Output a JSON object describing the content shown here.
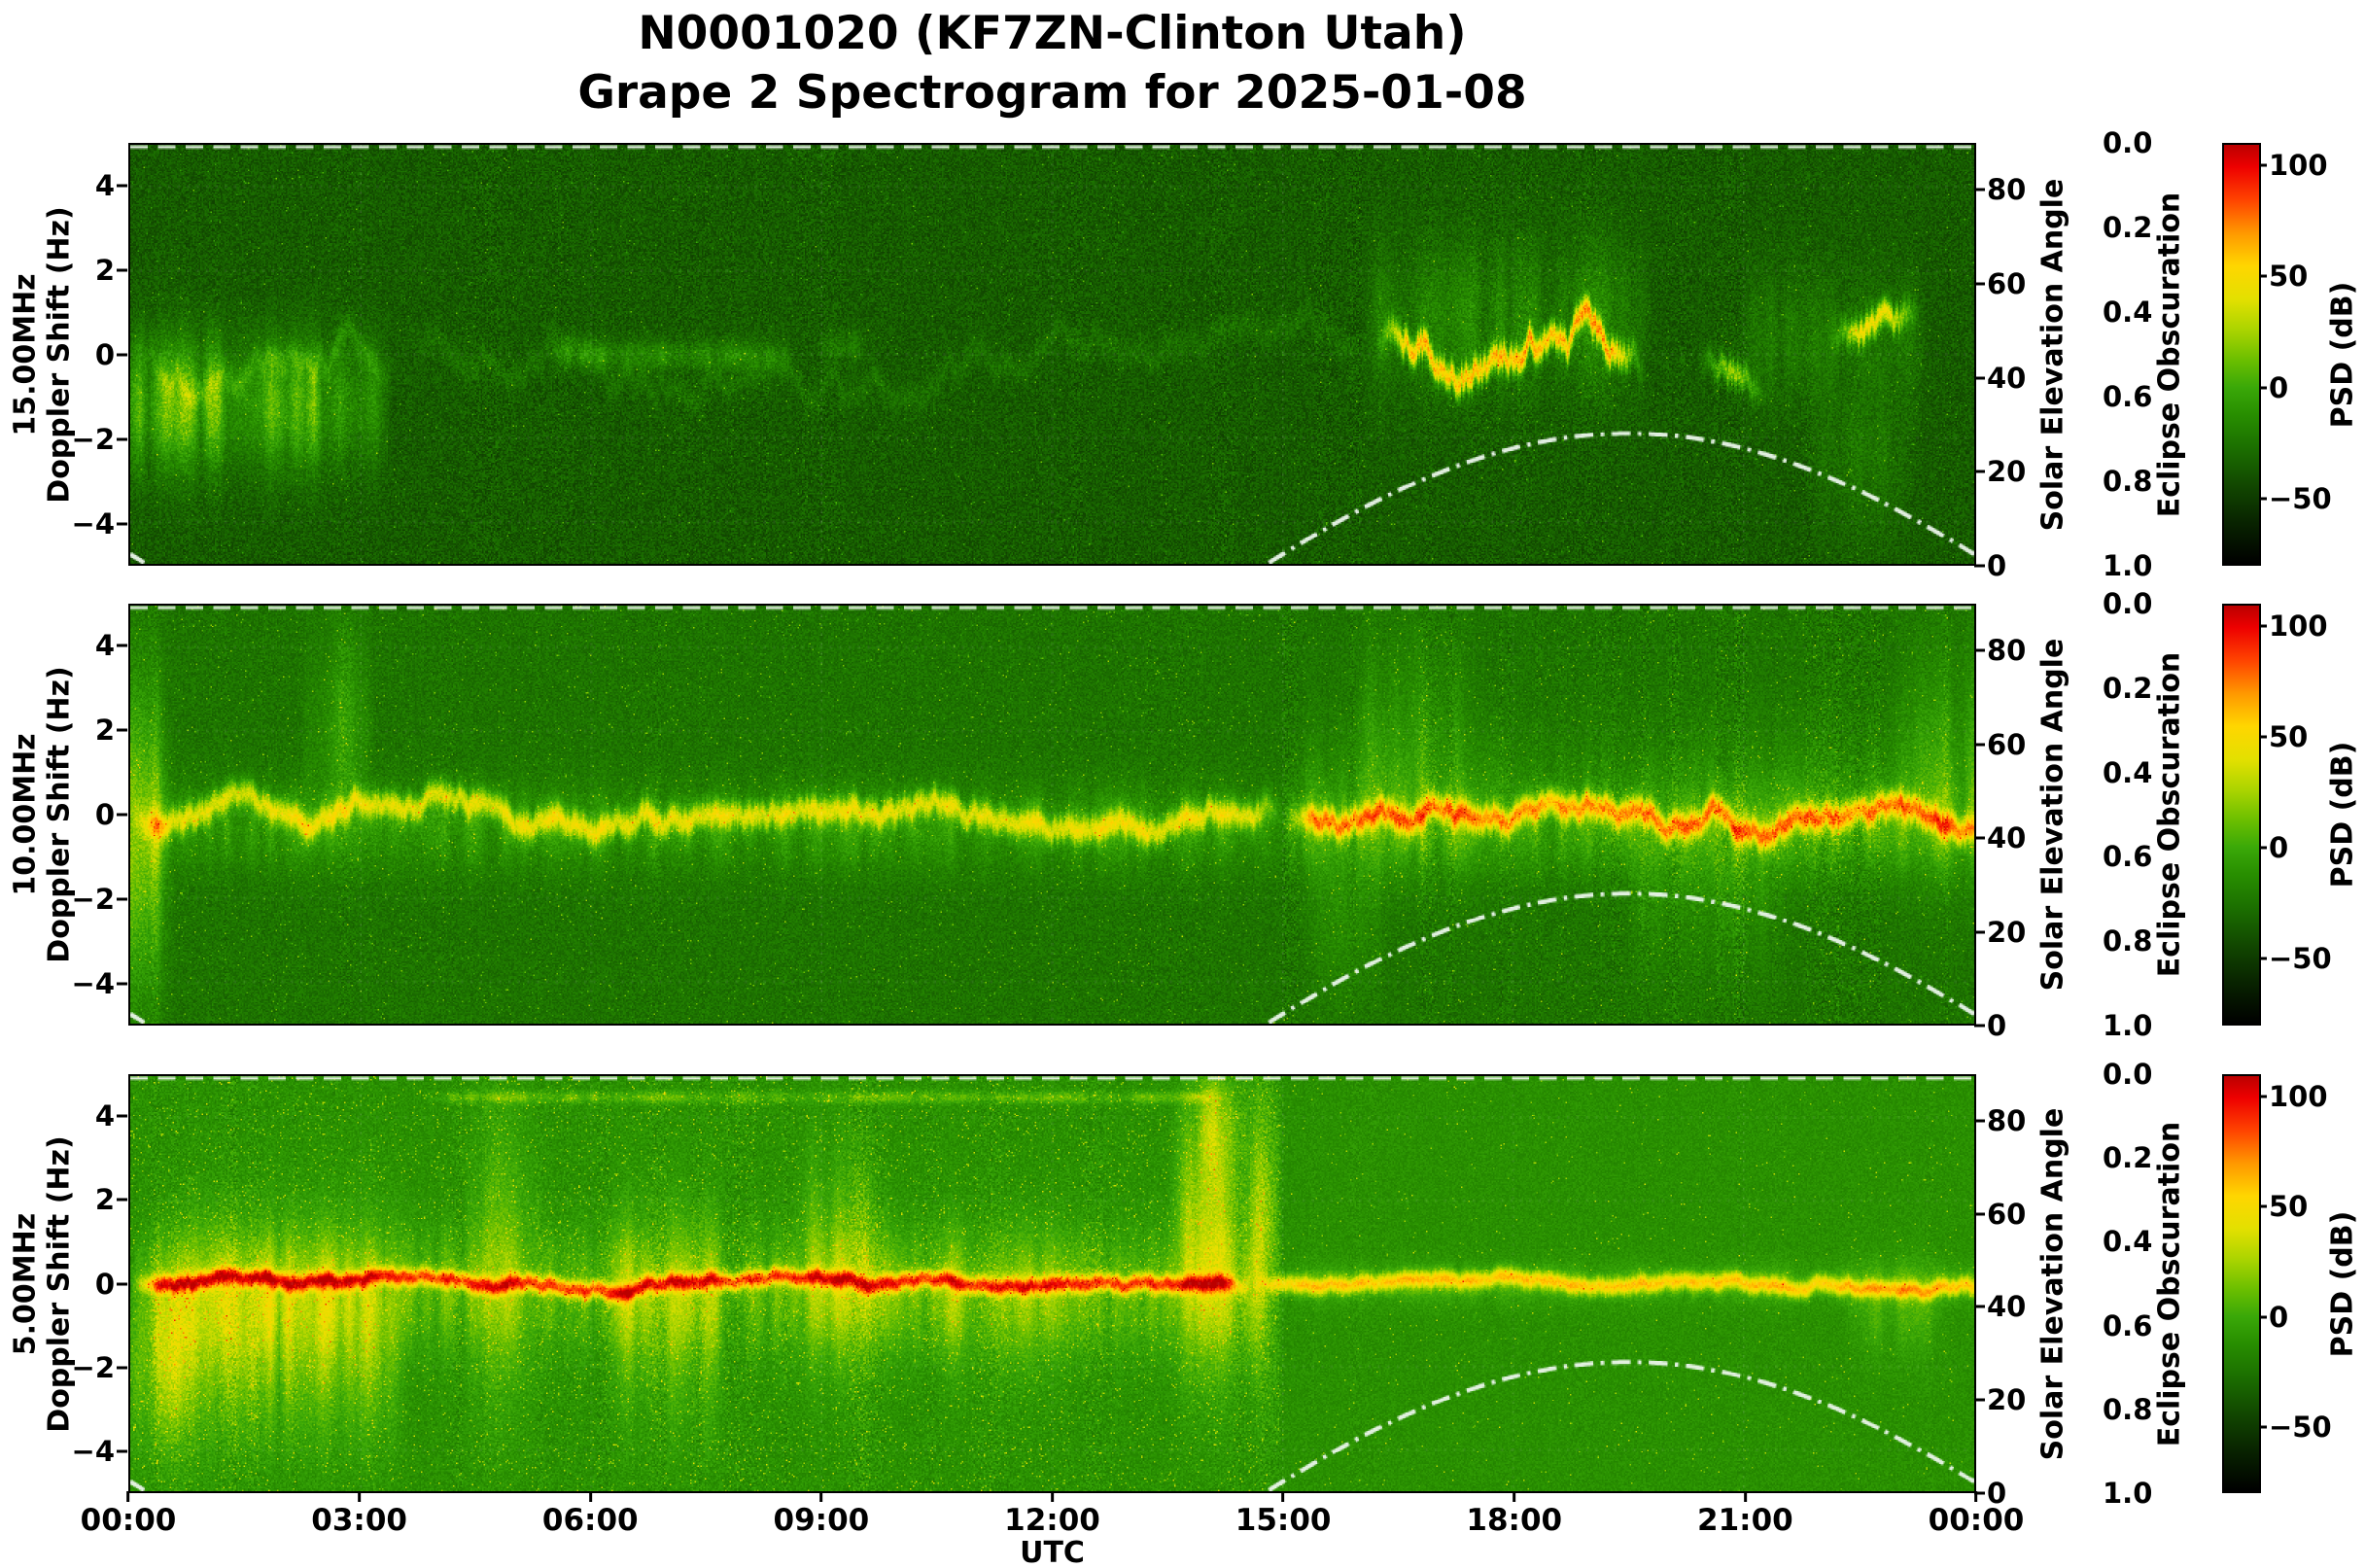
{
  "title": {
    "line1": "N0001020 (KF7ZN-Clinton Utah)",
    "line2": "Grape 2 Spectrogram for 2025-01-08"
  },
  "axes": {
    "x": {
      "label": "UTC",
      "ticks": [
        "00:00",
        "03:00",
        "06:00",
        "09:00",
        "12:00",
        "15:00",
        "18:00",
        "21:00",
        "00:00"
      ]
    },
    "doppler": {
      "ticks": [
        "4",
        "2",
        "0",
        "−2",
        "−4"
      ]
    },
    "solar": {
      "label": "Solar Elevation Angle",
      "ticks": [
        "80",
        "60",
        "40",
        "20",
        "0"
      ]
    },
    "eclipse": {
      "label": "Eclipse Obscuration",
      "ticks": [
        "0.0",
        "0.2",
        "0.4",
        "0.6",
        "0.8",
        "1.0"
      ]
    },
    "psd": {
      "label": "PSD (dB)",
      "ticks": [
        "100",
        "50",
        "0",
        "−50"
      ]
    }
  },
  "chart_data": {
    "type": "heatmap",
    "subtype": "doppler_spectrogram",
    "station": "N0001020",
    "operator_location": "KF7ZN-Clinton Utah",
    "instrument": "Grape 2",
    "date": "2025-01-08",
    "x_axis": {
      "label": "UTC",
      "unit": "hour",
      "range": [
        0,
        24
      ],
      "tick_interval_hours": 3
    },
    "y_axis": {
      "label": "Doppler Shift (Hz)",
      "range": [
        -5,
        5
      ],
      "ticks": [
        4,
        2,
        0,
        -2,
        -4
      ]
    },
    "psd_colorbar": {
      "label": "PSD (dB)",
      "range_db": [
        -80,
        110
      ],
      "ticks_db": [
        100,
        50,
        0,
        -50
      ],
      "colors_top_to_bottom": [
        "#bb0000",
        "#ee0000",
        "#ff9900",
        "#ffd600",
        "#aad400",
        "#3aa808",
        "#1b6e00",
        "#114600",
        "#000000"
      ]
    },
    "solar_elevation": {
      "label": "Solar Elevation Angle",
      "unit": "degrees",
      "axis_range": [
        0,
        90
      ],
      "axis_ticks": [
        80,
        60,
        40,
        20,
        0
      ],
      "curve_style": "white dash-dot",
      "sunrise_utc_hour": 14.8,
      "solar_noon_utc_hour": 19.5,
      "sunset_utc_hour": 24.2,
      "max_elevation_deg": 28,
      "points": [
        [
          0,
          2
        ],
        [
          0.2,
          0
        ],
        [
          14.8,
          0
        ],
        [
          15,
          2
        ],
        [
          16,
          11.6
        ],
        [
          17,
          19.3
        ],
        [
          18,
          24.8
        ],
        [
          19,
          27.6
        ],
        [
          19.5,
          28
        ],
        [
          20,
          27.6
        ],
        [
          21,
          24.8
        ],
        [
          22,
          19.3
        ],
        [
          23,
          11.6
        ],
        [
          24,
          2
        ]
      ]
    },
    "eclipse_obscuration": {
      "label": "Eclipse Obscuration",
      "axis_ticks": [
        0.0,
        0.2,
        0.4,
        0.6,
        0.8,
        1.0
      ],
      "axis_inverted_top_is_zero": true,
      "curve": "constant 0.0 all day (white dashed line along top edge of each panel)"
    },
    "panels": [
      {
        "label": "15.00MHz",
        "ylabel": "Doppler Shift (Hz)",
        "frequency_mhz": 15.0,
        "summary": "Quiet dark-green background near -35 dB. Diffuse weak Doppler spread -3 to +1 Hz from 00:00-03:30; faint 0 Hz trace 05:30-09:30; strong bright oscillatory traces -1 to +3.5 Hz from ~16:15-19:40 after local sunrise; short bursts near 20:30-21:15 and 22:10-23:20.",
        "render": {
          "seed": 101,
          "base": -38,
          "noise": 20,
          "streaks": 0.35,
          "speckle": 0.006,
          "centerline": {
            "width": 0.3,
            "jitter": 1.1,
            "segments": [
              [
                0,
                3.5,
                16
              ],
              [
                3.5,
                16.2,
                9
              ],
              [
                16.2,
                19.7,
                88
              ],
              [
                20.4,
                21.3,
                58
              ],
              [
                22.1,
                23.3,
                74
              ]
            ]
          },
          "blobs": [
            [
              -0.3,
              3.4,
              -1.2,
              1.5,
              48
            ],
            [
              5.4,
              8.7,
              0,
              0.35,
              22
            ],
            [
              8.9,
              9.7,
              0.2,
              0.35,
              18
            ],
            [
              16.0,
              19.8,
              0.9,
              1.8,
              20
            ],
            [
              20.9,
              23.4,
              0.4,
              1.6,
              14
            ],
            [
              21.8,
              23.3,
              -2.5,
              1.8,
              12
            ]
          ]
        }
      },
      {
        "label": "10.00MHz",
        "ylabel": "Doppler Shift (Hz)",
        "frequency_mhz": 10.0,
        "summary": "Continuous ragged Doppler trace centred near 0 Hz all day with about ±1 Hz spread; vertical noise streaks near 00:00-00:30 and 02:15-03:10; markedly enhanced brightness (yellow-orange) and vertical spread after ~15:00 sunrise through 24:00.",
        "render": {
          "seed": 202,
          "base": -27,
          "noise": 16,
          "streaks": 0.55,
          "speckle": 0.012,
          "streak_boost_after": 15,
          "streak_boost": 1.8,
          "centerline": {
            "width": 0.3,
            "jitter": 0.55,
            "segments": [
              [
                0,
                15,
                54
              ],
              [
                15,
                24.3,
                74
              ]
            ]
          },
          "blobs": [
            [
              -0.3,
              0.6,
              -0.5,
              3.5,
              42
            ],
            [
              2.2,
              3.2,
              2.0,
              2.4,
              20
            ],
            [
              0,
              24.3,
              -0.3,
              1.0,
              22
            ],
            [
              15,
              24.3,
              0.3,
              1.9,
              14
            ],
            [
              15.8,
              17.6,
              1.8,
              2.6,
              14
            ],
            [
              19.4,
              21.6,
              -1.6,
              2.2,
              13
            ],
            [
              22.8,
              24.3,
              1.6,
              2.6,
              16
            ],
            [
              15.2,
              16.4,
              -2.5,
              2.0,
              12
            ]
          ]
        }
      },
      {
        "label": "5.00MHz",
        "ylabel": "Doppler Shift (Hz)",
        "frequency_mhz": 5.0,
        "summary": "Bright yellow-green speckled background with a strong continuous 0 Hz carrier trace (yellow-orange, red at times). Broad vertical plumes 00:30-03:30, ~04:30-05:20, 06:15-07:45, 08:40-09:55 and a large plume reaching +4 Hz near 13:40-14:55; faint thin line near +4.5 Hz from ~04:00-14:15; smoother quieter green background after ~15:00 with a thin bright carrier line to 24:00 and minor activity 22:20-23:40.",
        "render": {
          "seed": 303,
          "base": -13,
          "noise": 15,
          "streaks": 0.8,
          "speckle": 0.03,
          "calm_after": 15,
          "centerline": {
            "width": 0.2,
            "jitter": 0.22,
            "segments": [
              [
                0,
                14.6,
                82
              ],
              [
                14.6,
                24.3,
                62
              ]
            ]
          },
          "blobs": [
            [
              -0.4,
              0.9,
              -2.0,
              2.0,
              30
            ],
            [
              0.3,
              3.6,
              -1.2,
              2.4,
              32
            ],
            [
              4.3,
              5.4,
              0.5,
              3.5,
              20
            ],
            [
              6.2,
              7.8,
              -0.8,
              2.6,
              22
            ],
            [
              8.6,
              9.9,
              0.5,
              2.6,
              22
            ],
            [
              10.4,
              12.3,
              -0.5,
              1.8,
              12
            ],
            [
              13.5,
              15.0,
              1.2,
              3.2,
              42
            ],
            [
              13.8,
              14.6,
              3.8,
              1.2,
              34
            ],
            [
              3.8,
              14.3,
              4.5,
              0.14,
              22
            ],
            [
              0,
              14.8,
              -0.2,
              1.4,
              26
            ],
            [
              15,
              24.3,
              0,
              0.5,
              14
            ],
            [
              22.3,
              23.7,
              -0.6,
              1.1,
              18
            ]
          ]
        }
      }
    ]
  }
}
